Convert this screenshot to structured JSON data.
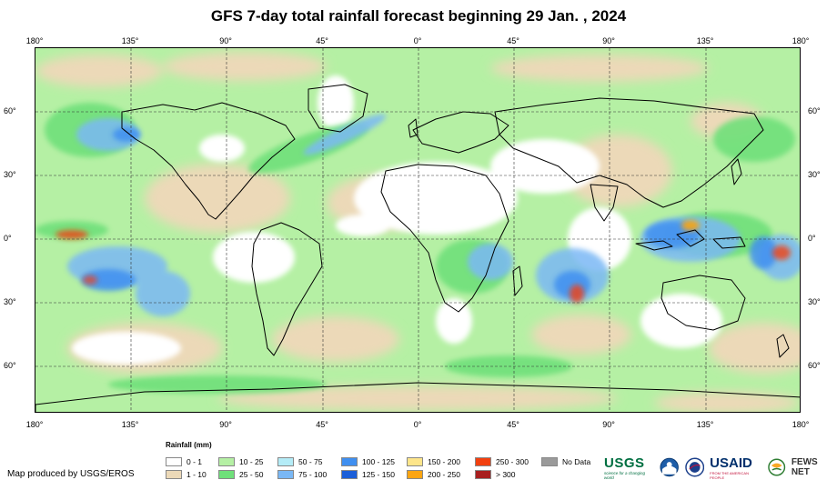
{
  "title": "GFS 7-day total rainfall forecast beginning 29 Jan. , 2024",
  "lon_labels": [
    "180°",
    "135°",
    "90°",
    "45°",
    "0°",
    "45°",
    "90°",
    "135°",
    "180°"
  ],
  "lat_labels": [
    "60°",
    "30°",
    "0°",
    "30°",
    "60°"
  ],
  "legend": {
    "title": "Rainfall (mm)",
    "items": [
      {
        "label": "0 - 1",
        "color": "#ffffff"
      },
      {
        "label": "1 - 10",
        "color": "#ecd9b8"
      },
      {
        "label": "10 - 25",
        "color": "#b5f0a4"
      },
      {
        "label": "25 - 50",
        "color": "#6fe07a"
      },
      {
        "label": "50 - 75",
        "color": "#b4ecf7"
      },
      {
        "label": "75 - 100",
        "color": "#7ab8f5"
      },
      {
        "label": "100 - 125",
        "color": "#3f8ff0"
      },
      {
        "label": "125 - 150",
        "color": "#1c5fd8"
      },
      {
        "label": "150 - 200",
        "color": "#fde58a"
      },
      {
        "label": "200 - 250",
        "color": "#fca512"
      },
      {
        "label": "250 - 300",
        "color": "#f2400f"
      },
      {
        "label": "> 300",
        "color": "#a81f1f"
      },
      {
        "label": "No Data",
        "color": "#9a9a9a"
      }
    ]
  },
  "credit": "Map produced by USGS/EROS",
  "logos": {
    "usgs": "USGS",
    "usgs_tag": "science for a changing world",
    "usaid": "USAID",
    "usaid_tag": "FROM THE AMERICAN PEOPLE",
    "fews": "FEWS NET"
  }
}
